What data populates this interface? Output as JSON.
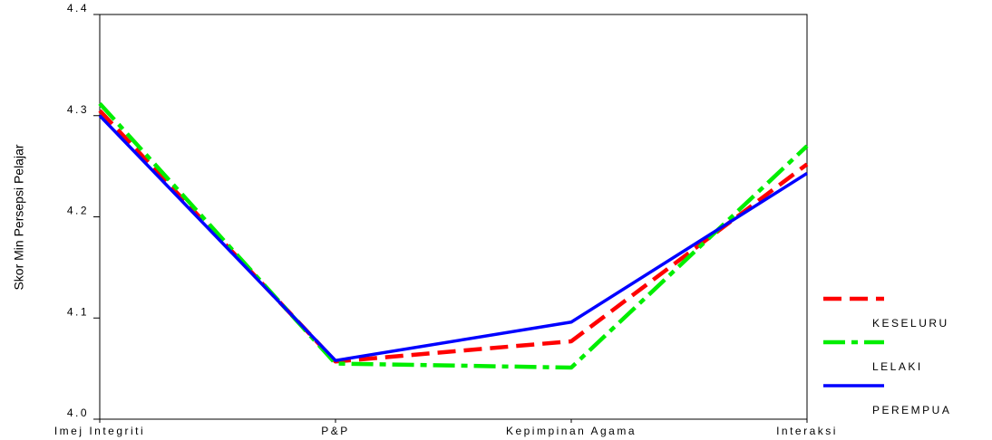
{
  "chart_data": {
    "type": "line",
    "y_label": "Skor Min Persepsi Pelajar",
    "categories": [
      "Imej Integriti",
      "P&P",
      "Kepimpinan Agama",
      "Interaksi"
    ],
    "series": [
      {
        "name": "KESELURU",
        "color": "#ff0000",
        "values": [
          4.305,
          4.057,
          4.077,
          4.252
        ]
      },
      {
        "name": "LELAKI",
        "color": "#00ee00",
        "values": [
          4.312,
          4.055,
          4.051,
          4.27
        ]
      },
      {
        "name": "PEREMPUA",
        "color": "#0000ff",
        "values": [
          4.3,
          4.058,
          4.096,
          4.243
        ]
      }
    ],
    "ylim": [
      4.0,
      4.4
    ],
    "yticks": [
      {
        "value": 4.0,
        "label": "4.0"
      },
      4.1,
      4.2,
      4.3,
      4.4
    ],
    "grid": false
  }
}
